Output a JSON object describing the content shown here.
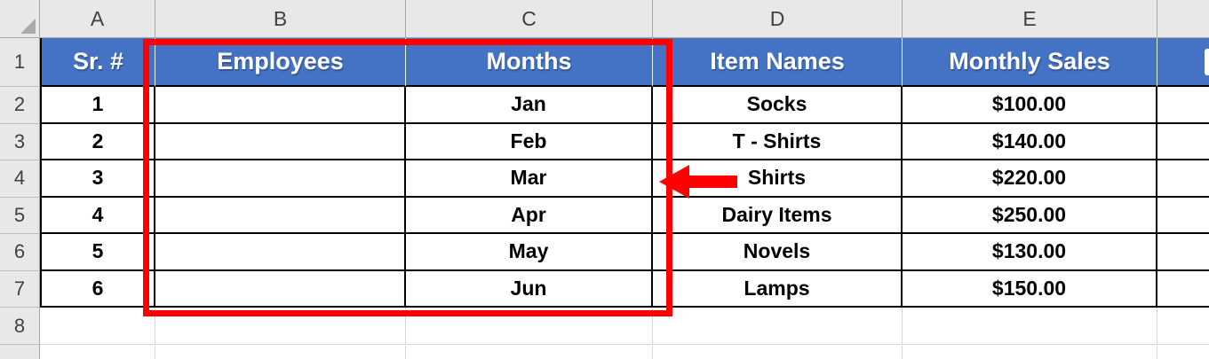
{
  "sheet": {
    "column_letters": [
      "A",
      "B",
      "C",
      "D",
      "E"
    ],
    "row_numbers": [
      "1",
      "2",
      "3",
      "4",
      "5",
      "6",
      "7",
      "8"
    ],
    "header_row": {
      "sr_no": "Sr. #",
      "employees": "Employees",
      "months": "Months",
      "item_names": "Item Names",
      "monthly_sales": "Monthly Sales"
    },
    "rows": [
      {
        "sr": "1",
        "employee": "",
        "month": "Jan",
        "item": "Socks",
        "sales": "$100.00"
      },
      {
        "sr": "2",
        "employee": "",
        "month": "Feb",
        "item": "T - Shirts",
        "sales": "$140.00"
      },
      {
        "sr": "3",
        "employee": "",
        "month": "Mar",
        "item": "Shirts",
        "sales": "$220.00"
      },
      {
        "sr": "4",
        "employee": "",
        "month": "Apr",
        "item": "Dairy Items",
        "sales": "$250.00"
      },
      {
        "sr": "5",
        "employee": "",
        "month": "May",
        "item": "Novels",
        "sales": "$130.00"
      },
      {
        "sr": "6",
        "employee": "",
        "month": "Jun",
        "item": "Lamps",
        "sales": "$150.00"
      }
    ]
  },
  "colors": {
    "header_fill": "#4472C4",
    "header_text": "#FFFFFF",
    "annotation_red": "#FE0000",
    "table_border": "#000000",
    "frame_bg": "#E8E8E8"
  }
}
